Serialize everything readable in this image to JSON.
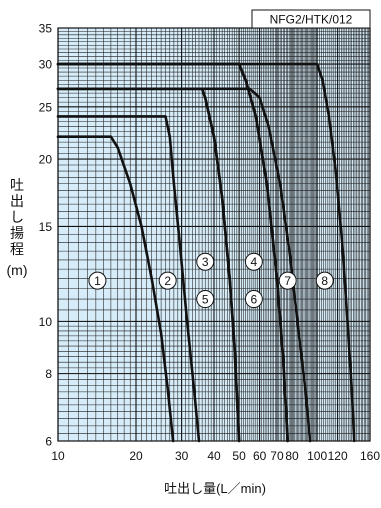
{
  "chart_data": {
    "type": "line",
    "title": "NFG2/HTK/012",
    "ylabel": "吐出し揚程",
    "ylabel_unit": "(m)",
    "xlabel": "吐出し量(L／min)",
    "x_scale": "log",
    "y_scale": "log",
    "xlim": [
      10,
      160
    ],
    "ylim": [
      6,
      35
    ],
    "x_ticks": [
      10,
      20,
      30,
      40,
      50,
      60,
      70,
      80,
      100,
      120,
      160
    ],
    "y_ticks": [
      6,
      8,
      10,
      15,
      20,
      25,
      30,
      35
    ],
    "grid": true,
    "background_color": "#d6ecf8",
    "line_color": "#111111",
    "series": [
      {
        "curve_id": 1,
        "x": [
          10,
          16,
          17,
          19,
          21,
          23,
          25,
          26.5,
          27.8
        ],
        "y": [
          22,
          22,
          21,
          18,
          15,
          12,
          9.5,
          7.5,
          6
        ]
      },
      {
        "curve_id": 2,
        "x": [
          10,
          26,
          27,
          28,
          29.5,
          31.5,
          33.5,
          35
        ],
        "y": [
          24,
          24,
          22,
          18,
          14,
          10,
          7.5,
          6
        ]
      },
      {
        "curve_id": 3,
        "x": [
          10,
          36,
          37,
          40,
          43,
          46,
          48,
          50
        ],
        "y": [
          27,
          27,
          26,
          22,
          17,
          12,
          9,
          6
        ]
      },
      {
        "curve_id": 4,
        "x": [
          10,
          50,
          53,
          58,
          64,
          70,
          74,
          77
        ],
        "y": [
          30,
          30,
          28,
          24,
          18,
          12,
          8.5,
          6
        ]
      },
      {
        "curve_id": 5,
        "x": [
          10,
          36,
          37,
          40,
          43,
          46,
          48,
          50
        ],
        "y": [
          27,
          27,
          26,
          22,
          17,
          12,
          9,
          6
        ]
      },
      {
        "curve_id": 6,
        "x": [
          10,
          50,
          53,
          58,
          64,
          70,
          74,
          77
        ],
        "y": [
          30,
          30,
          28,
          24,
          18,
          12,
          8.5,
          6
        ]
      },
      {
        "curve_id": 7,
        "x": [
          10,
          55,
          60,
          65,
          72,
          79,
          85,
          90,
          94
        ],
        "y": [
          27,
          27,
          26,
          23,
          18,
          13,
          9.5,
          7.5,
          6
        ]
      },
      {
        "curve_id": 8,
        "x": [
          10,
          100,
          105,
          111,
          118,
          125,
          131,
          136,
          139
        ],
        "y": [
          30,
          30,
          28,
          24,
          19,
          14,
          10,
          7.5,
          6
        ]
      }
    ],
    "curve_labels": [
      {
        "text": "1",
        "x": 14.2,
        "y": 11.9
      },
      {
        "text": "2",
        "x": 26.5,
        "y": 11.9
      },
      {
        "text": "3",
        "x": 37,
        "y": 12.9
      },
      {
        "text": "4",
        "x": 57,
        "y": 12.9
      },
      {
        "text": "5",
        "x": 37,
        "y": 11.0
      },
      {
        "text": "6",
        "x": 57,
        "y": 11.0
      },
      {
        "text": "7",
        "x": 77,
        "y": 11.9
      },
      {
        "text": "8",
        "x": 107,
        "y": 11.9
      }
    ]
  }
}
